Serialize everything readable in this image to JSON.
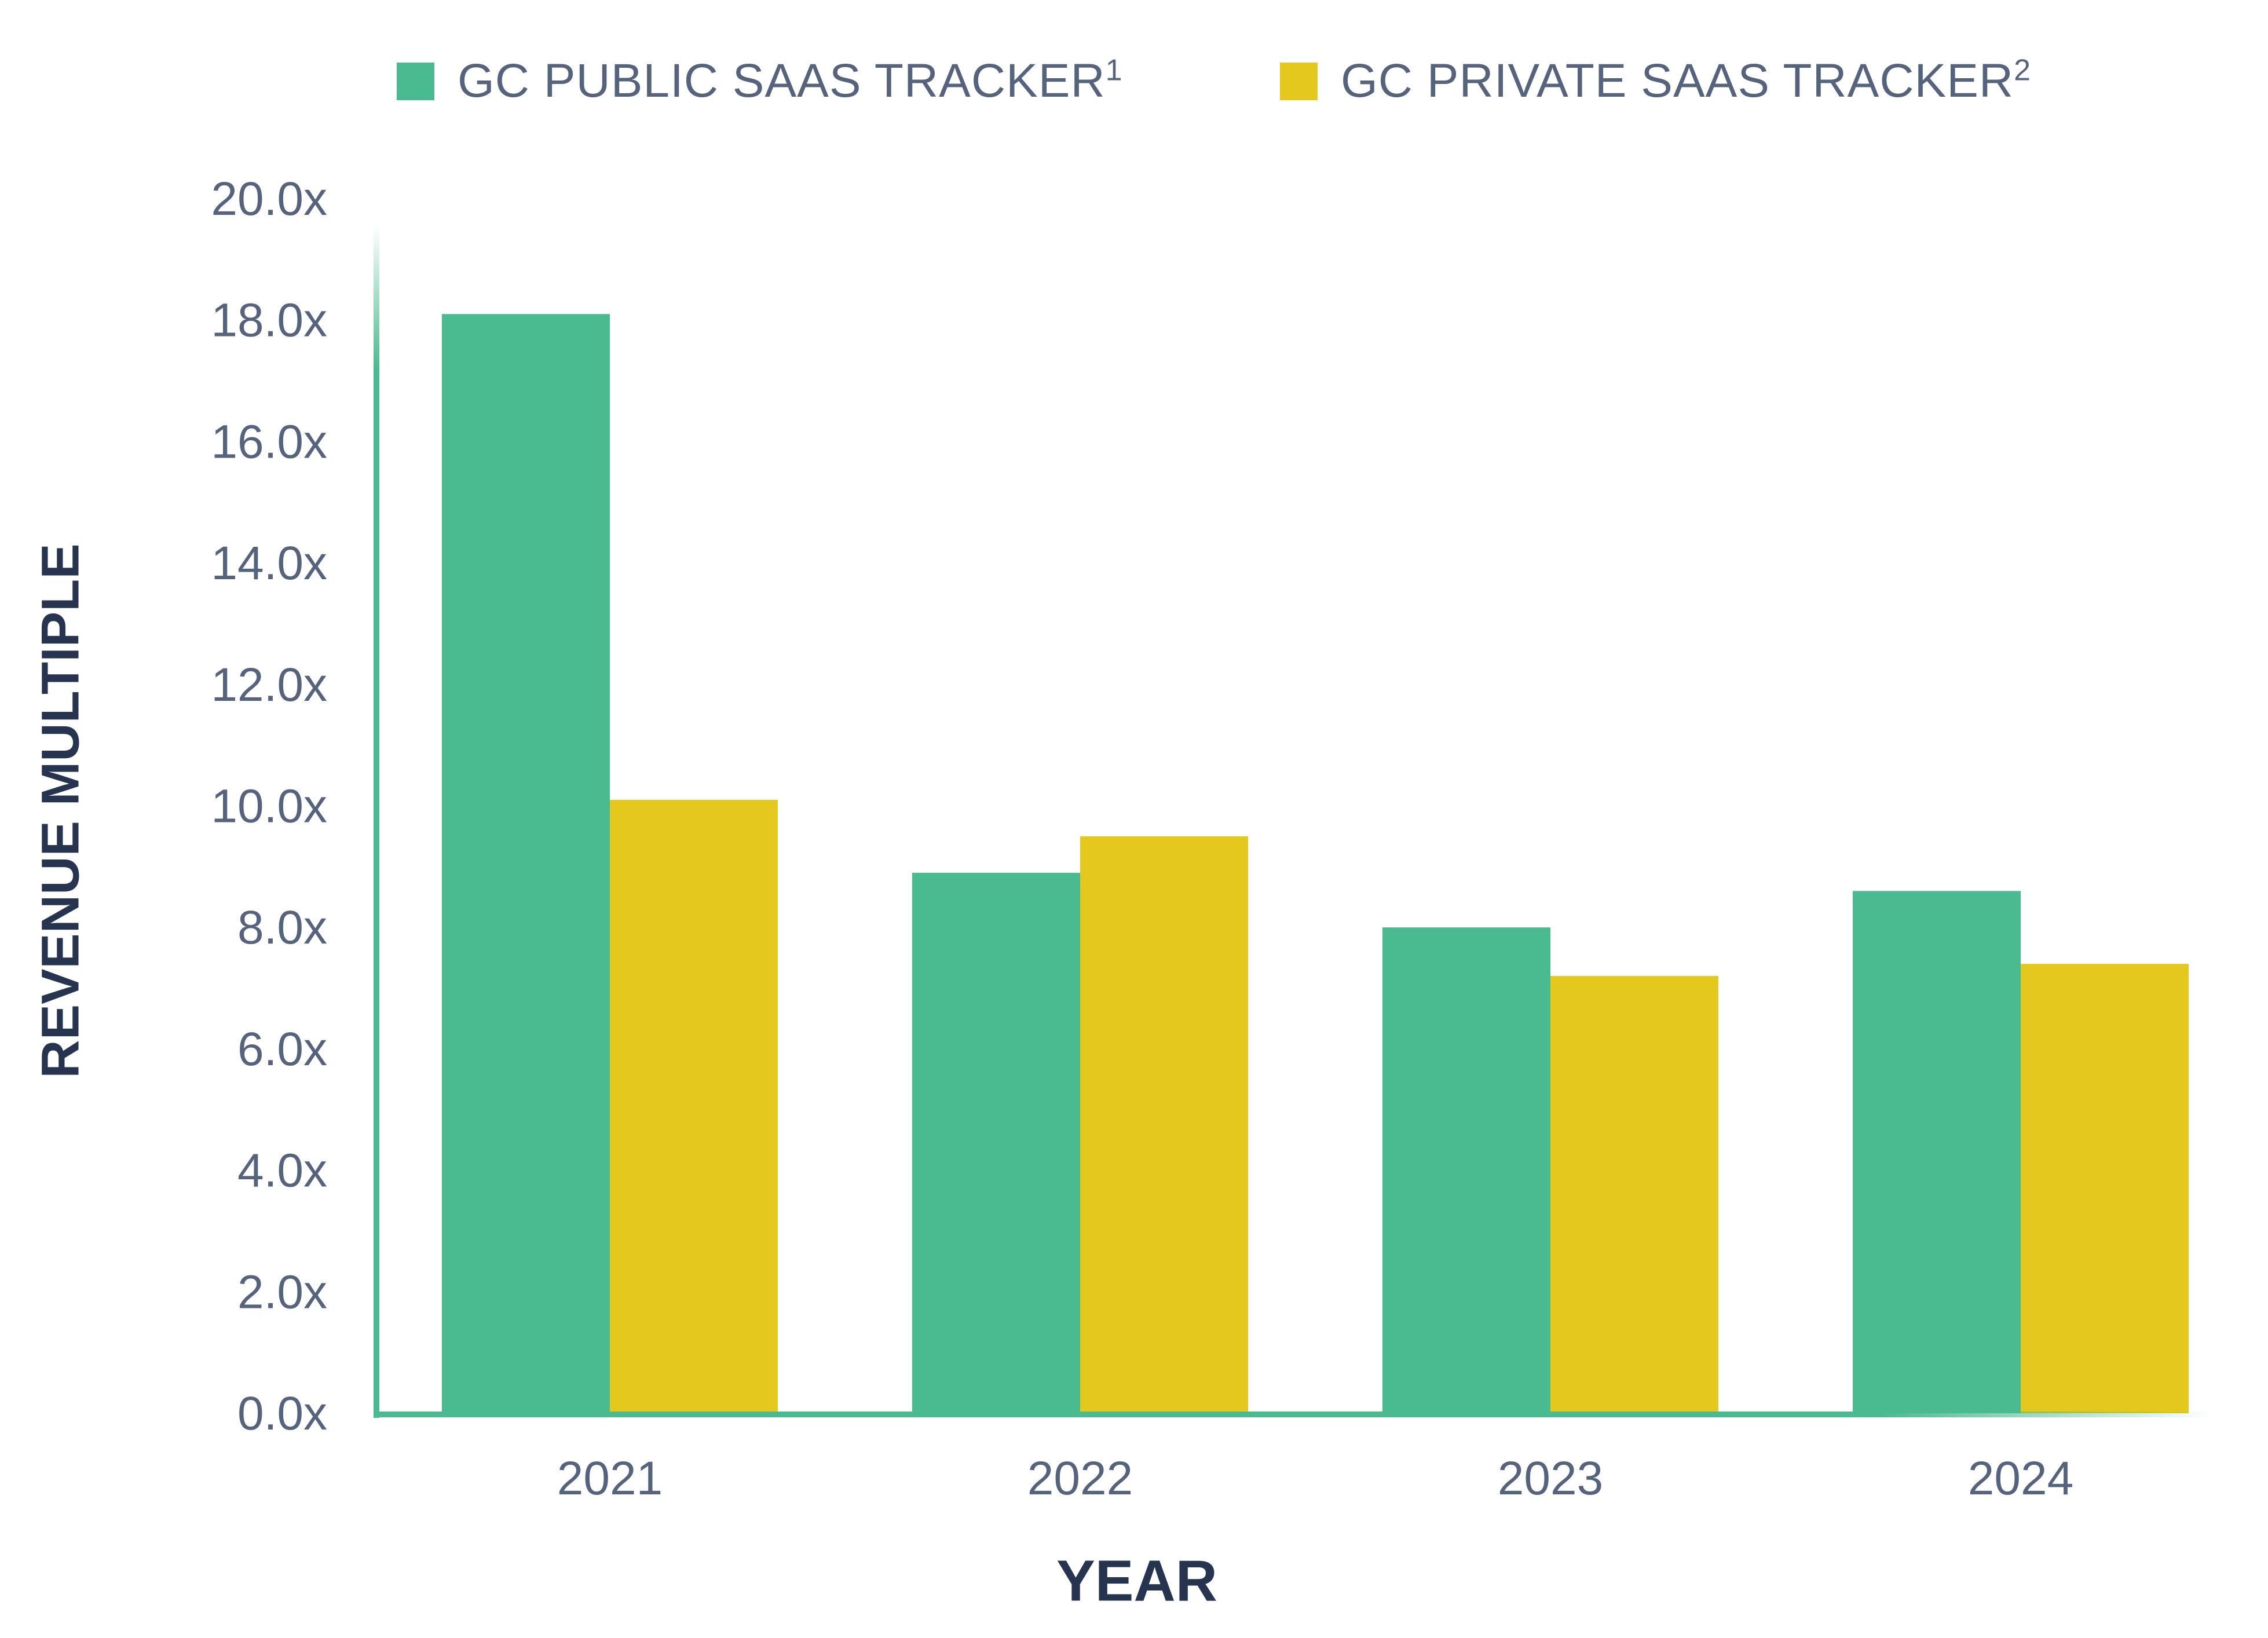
{
  "chart_data": {
    "type": "bar",
    "categories": [
      "2021",
      "2022",
      "2023",
      "2024"
    ],
    "series": [
      {
        "name": "GC PUBLIC SAAS TRACKER",
        "name_sup": "1",
        "color": "#4aba91",
        "values": [
          18.1,
          8.9,
          8.0,
          8.6
        ]
      },
      {
        "name": "GC PRIVATE SAAS TRACKER",
        "name_sup": "2",
        "color": "#e4c81e",
        "values": [
          10.1,
          9.5,
          7.2,
          7.4
        ]
      }
    ],
    "yticks": [
      "0.0x",
      "2.0x",
      "4.0x",
      "6.0x",
      "8.0x",
      "10.0x",
      "12.0x",
      "14.0x",
      "16.0x",
      "18.0x",
      "20.0x"
    ],
    "xlabel": "YEAR",
    "ylabel": "REVENUE MULTIPLE",
    "ylim": [
      0,
      20
    ],
    "grid": false,
    "legend_position": "top"
  },
  "colors": {
    "axis": "#4aba91",
    "tick_text": "#56637c",
    "title_text": "#27344f"
  }
}
